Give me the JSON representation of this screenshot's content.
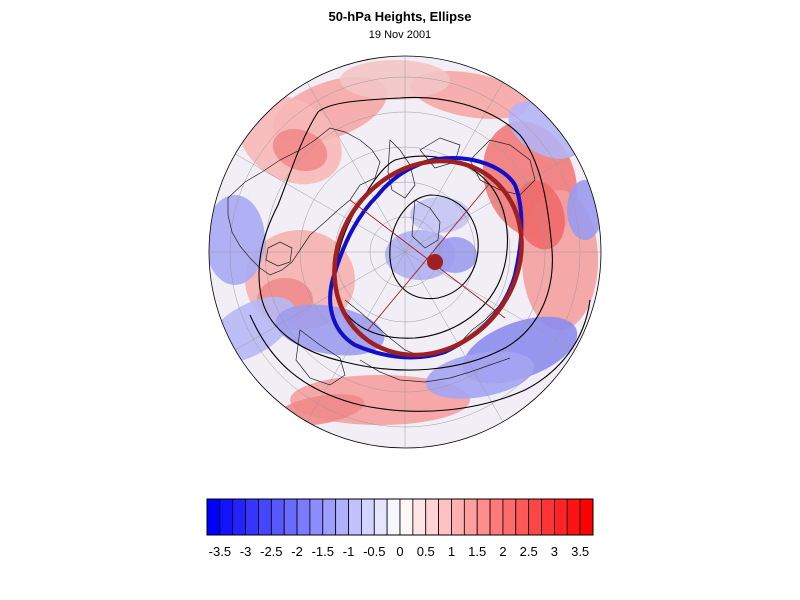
{
  "figure": {
    "title": "50-hPa Heights, Ellipse",
    "subtitle": "19 Nov 2001"
  },
  "map": {
    "projection": "north-polar stereographic",
    "features": [
      "coastlines",
      "graticule",
      "height-contours",
      "vortex-edge-contour",
      "fitted-ellipse",
      "ellipse-axes",
      "ellipse-centroid"
    ],
    "colors": {
      "vortex_edge": "#1010c8",
      "ellipse": "#9e2020",
      "contour": "#000000",
      "positive": "#ff2020",
      "negative": "#2020ff"
    }
  },
  "colorbar": {
    "orientation": "horizontal",
    "levels": [
      -3.5,
      -3.25,
      -3,
      -2.75,
      -2.5,
      -2.25,
      -2,
      -1.75,
      -1.5,
      -1.25,
      -1,
      -0.75,
      -0.5,
      -0.25,
      0,
      0.25,
      0.5,
      0.75,
      1,
      1.25,
      1.5,
      1.75,
      2,
      2.25,
      2.5,
      2.75,
      3,
      3.25,
      3.5
    ],
    "labels": [
      "-3.5",
      "-3",
      "-2.5",
      "-2",
      "-1.5",
      "-1",
      "-0.5",
      "0",
      "0.5",
      "1",
      "1.5",
      "2",
      "2.5",
      "3",
      "3.5"
    ]
  }
}
